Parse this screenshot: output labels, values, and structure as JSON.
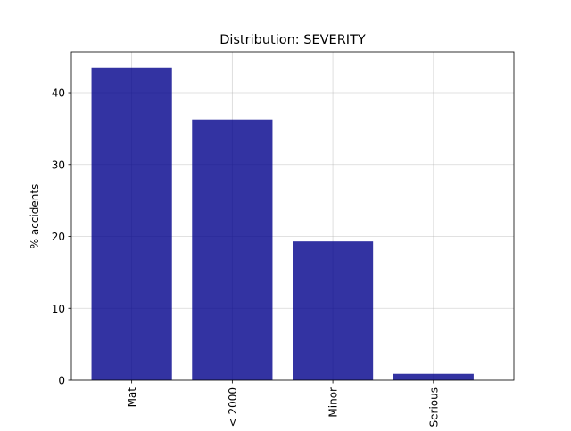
{
  "chart_data": {
    "type": "bar",
    "title": "Distribution: SEVERITY",
    "xlabel": "",
    "ylabel": "% accidents",
    "categories": [
      "Mat",
      "< 2000",
      "Minor",
      "Serious"
    ],
    "values": [
      43.5,
      36.2,
      19.3,
      0.9
    ],
    "ylim": [
      0,
      45.7
    ],
    "yticks": [
      0,
      10,
      20,
      30,
      40
    ],
    "grid": true,
    "bar_color": "#00008B",
    "bar_alpha": 0.8,
    "tick_label_rotation": 90
  }
}
